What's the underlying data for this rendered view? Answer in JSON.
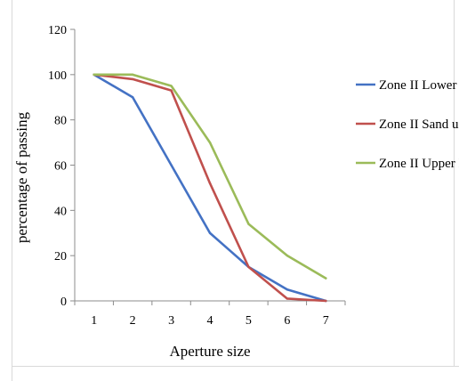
{
  "chart_data": {
    "type": "line",
    "title": "",
    "xlabel": "Aperture size",
    "ylabel": "percentage of passing",
    "x": [
      1,
      2,
      3,
      4,
      5,
      6,
      7
    ],
    "ylim": [
      0,
      120
    ],
    "yticks": [
      0,
      20,
      40,
      60,
      80,
      100,
      120
    ],
    "grid": false,
    "legend_position": "right",
    "series": [
      {
        "name": "Zone II Lower Limit",
        "color": "#4472c4",
        "values": [
          100,
          90,
          60,
          30,
          15,
          5,
          0
        ]
      },
      {
        "name": "Zone II Sand used",
        "color": "#c0504d",
        "values": [
          100,
          98,
          93,
          52,
          15,
          1,
          0
        ]
      },
      {
        "name": "Zone II Upper Limit",
        "color": "#9bbb59",
        "values": [
          100,
          100,
          95,
          70,
          34,
          20,
          10
        ]
      }
    ]
  }
}
